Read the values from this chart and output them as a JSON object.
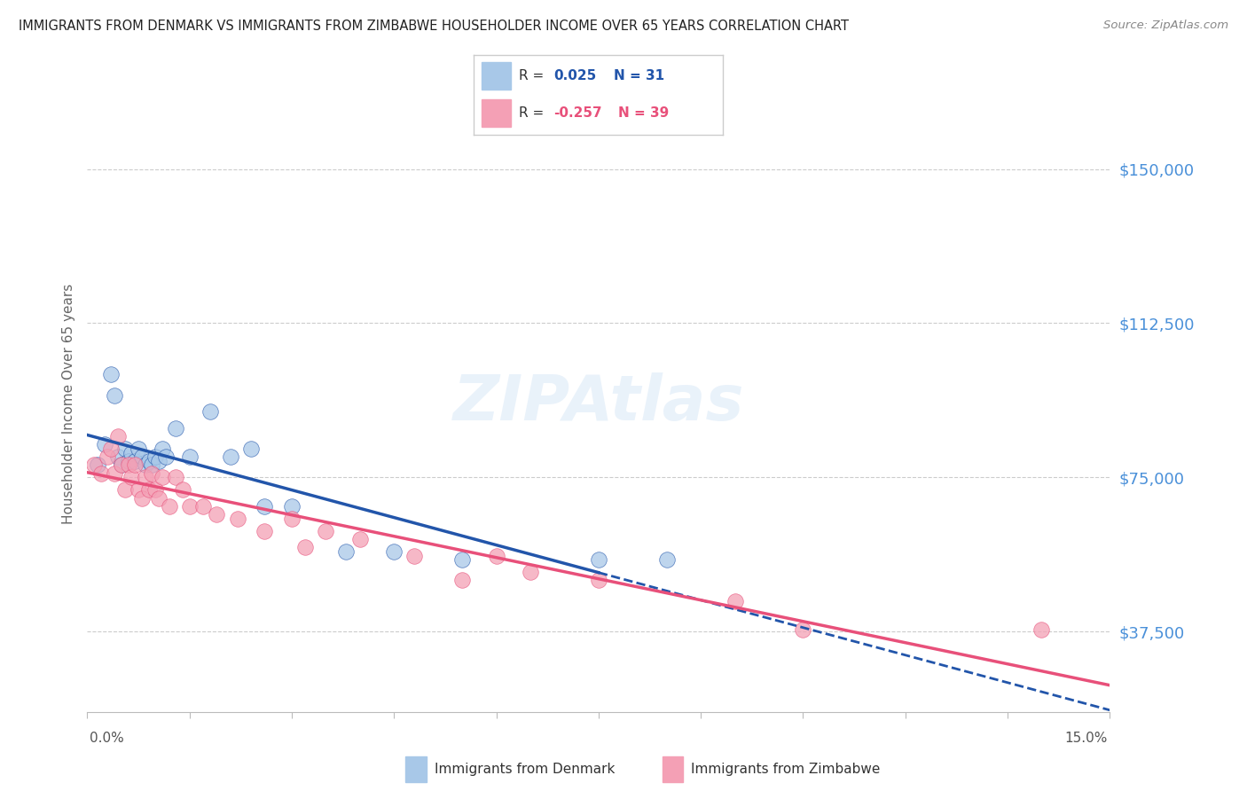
{
  "title": "IMMIGRANTS FROM DENMARK VS IMMIGRANTS FROM ZIMBABWE HOUSEHOLDER INCOME OVER 65 YEARS CORRELATION CHART",
  "source": "Source: ZipAtlas.com",
  "ylabel": "Householder Income Over 65 years",
  "yticks": [
    37500,
    75000,
    112500,
    150000
  ],
  "ytick_labels": [
    "$37,500",
    "$75,000",
    "$112,500",
    "$150,000"
  ],
  "xlim": [
    0.0,
    15.0
  ],
  "ylim": [
    18000,
    168000
  ],
  "legend_denmark": "Immigrants from Denmark",
  "legend_zimbabwe": "Immigrants from Zimbabwe",
  "denmark_R": "0.025",
  "denmark_N": "31",
  "zimbabwe_R": "-0.257",
  "zimbabwe_N": "39",
  "denmark_color": "#a8c8e8",
  "zimbabwe_color": "#f4a0b5",
  "denmark_line_color": "#2255aa",
  "zimbabwe_line_color": "#e8507a",
  "denmark_x": [
    0.15,
    0.25,
    0.35,
    0.4,
    0.45,
    0.5,
    0.55,
    0.6,
    0.65,
    0.7,
    0.75,
    0.8,
    0.85,
    0.9,
    0.95,
    1.0,
    1.05,
    1.1,
    1.15,
    1.3,
    1.5,
    1.8,
    2.1,
    2.4,
    2.6,
    3.0,
    3.8,
    4.5,
    5.5,
    7.5,
    8.5
  ],
  "denmark_y": [
    78000,
    83000,
    100000,
    95000,
    80000,
    78000,
    82000,
    79000,
    81000,
    79000,
    82000,
    80000,
    78000,
    79000,
    78000,
    80000,
    79000,
    82000,
    80000,
    87000,
    80000,
    91000,
    80000,
    82000,
    68000,
    68000,
    57000,
    57000,
    55000,
    55000,
    55000
  ],
  "zimbabwe_x": [
    0.1,
    0.2,
    0.3,
    0.35,
    0.4,
    0.45,
    0.5,
    0.55,
    0.6,
    0.65,
    0.7,
    0.75,
    0.8,
    0.85,
    0.9,
    0.95,
    1.0,
    1.05,
    1.1,
    1.2,
    1.3,
    1.4,
    1.5,
    1.7,
    1.9,
    2.2,
    2.6,
    3.0,
    3.2,
    3.5,
    4.0,
    4.8,
    5.5,
    6.0,
    6.5,
    7.5,
    9.5,
    10.5,
    14.0
  ],
  "zimbabwe_y": [
    78000,
    76000,
    80000,
    82000,
    76000,
    85000,
    78000,
    72000,
    78000,
    75000,
    78000,
    72000,
    70000,
    75000,
    72000,
    76000,
    72000,
    70000,
    75000,
    68000,
    75000,
    72000,
    68000,
    68000,
    66000,
    65000,
    62000,
    65000,
    58000,
    62000,
    60000,
    56000,
    50000,
    56000,
    52000,
    50000,
    45000,
    38000,
    38000
  ]
}
